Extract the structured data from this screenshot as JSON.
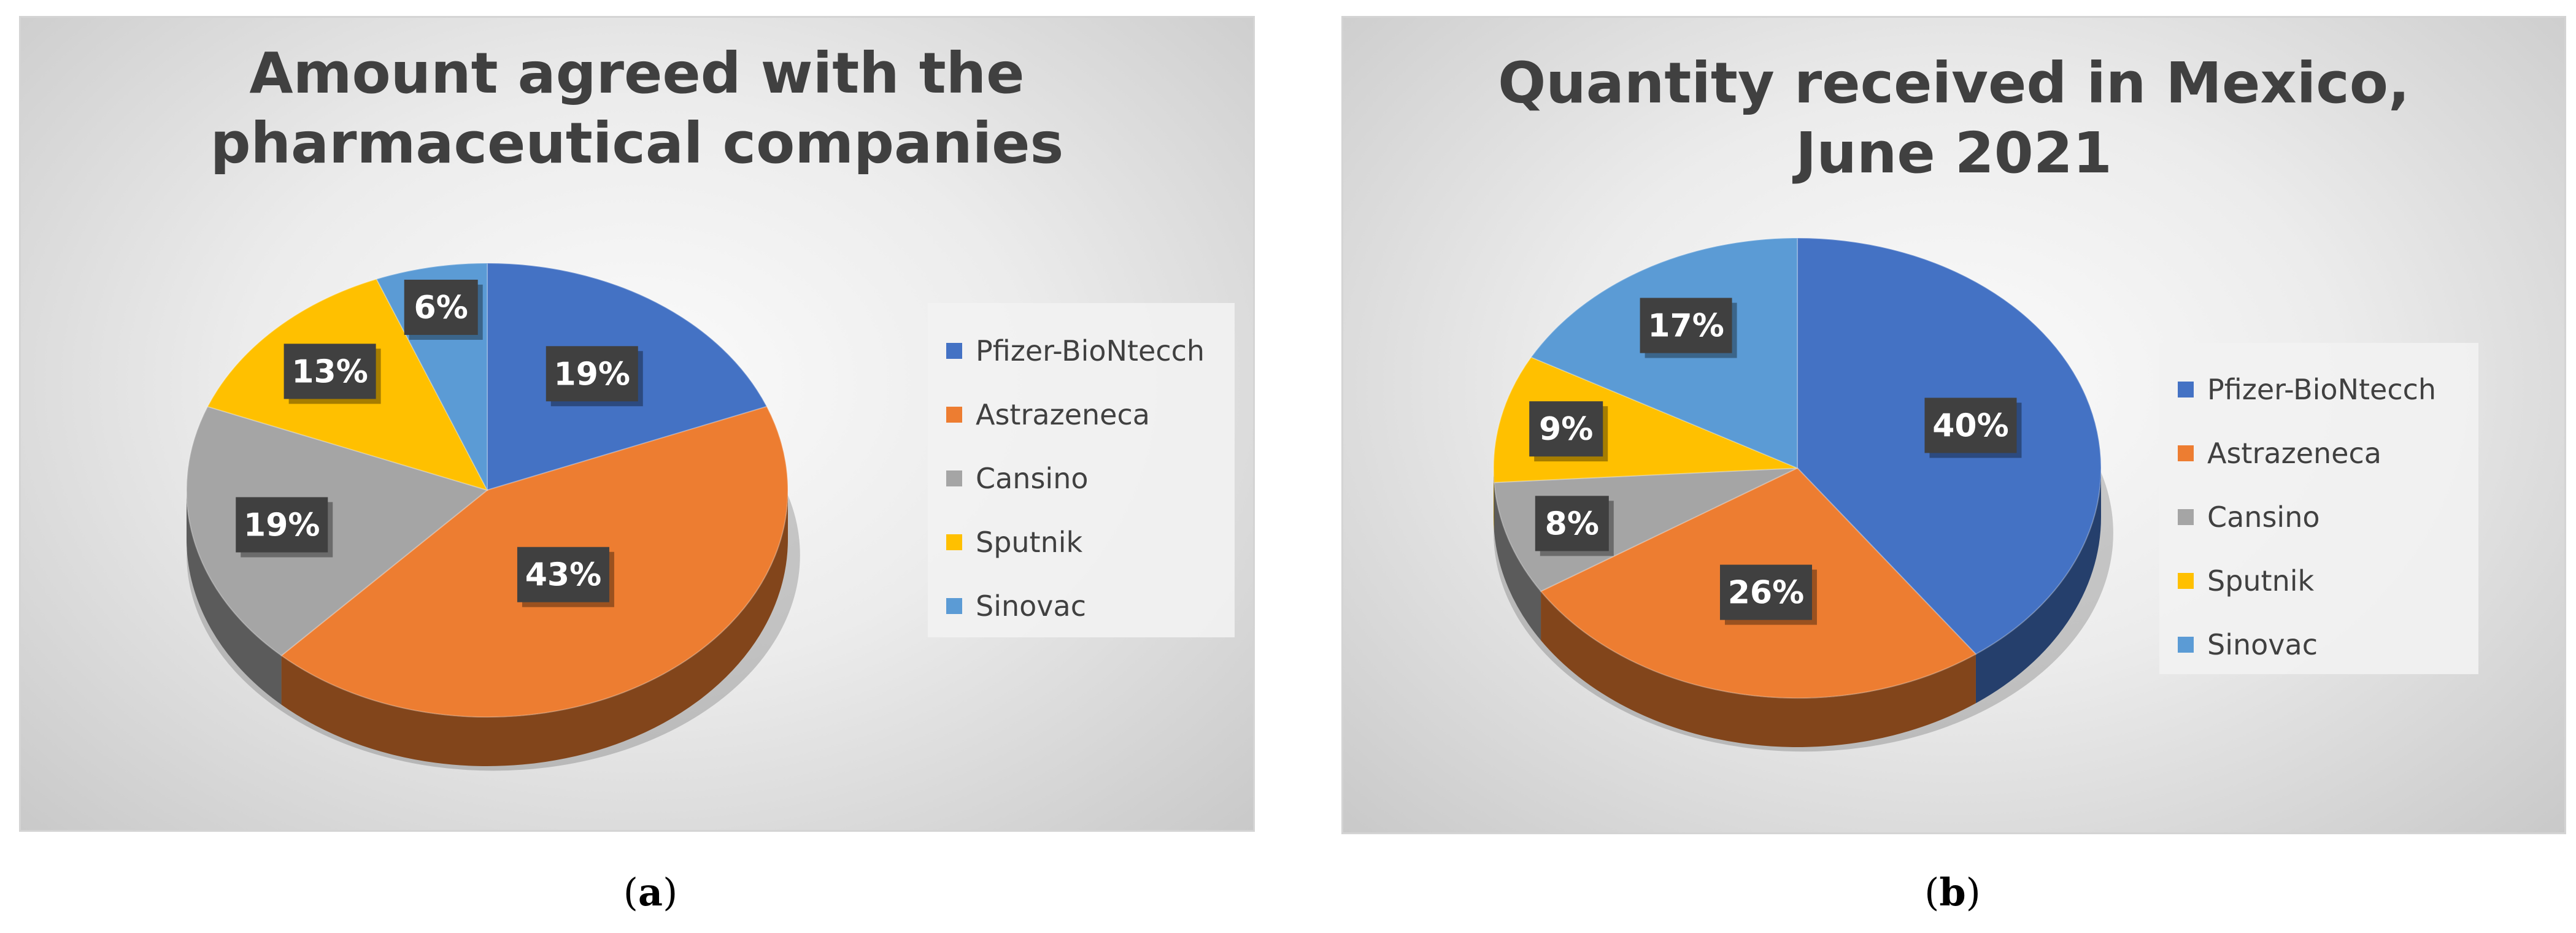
{
  "colors": {
    "pfizer": "#4472C4",
    "astrazeneca": "#ED7D31",
    "cansino": "#A5A5A5",
    "sputnik": "#FFC000",
    "sinovac": "#5B9BD5",
    "label_bg": "#404040",
    "label_text": "#FFFFFF"
  },
  "panels": [
    {
      "caption_letter": "a"
    },
    {
      "caption_letter": "b"
    }
  ],
  "chart_data": [
    {
      "type": "pie",
      "title": "Amount agreed with the pharmaceutical companies",
      "title_lines": [
        "Amount agreed with the",
        "pharmaceutical companies"
      ],
      "legend_position": "right",
      "categories": [
        "Pfizer-BioNtecch",
        "Astrazeneca",
        "Cansino",
        "Sputnik",
        "Sinovac"
      ],
      "values": [
        19,
        43,
        19,
        13,
        6
      ],
      "labels": [
        "19%",
        "43%",
        "19%",
        "13%",
        "6%"
      ],
      "colors": [
        "#4472C4",
        "#ED7D31",
        "#A5A5A5",
        "#FFC000",
        "#5B9BD5"
      ]
    },
    {
      "type": "pie",
      "title": "Quantity received in  Mexico, June 2021",
      "title_lines": [
        "Quantity received in  Mexico,",
        "June 2021"
      ],
      "legend_position": "right",
      "categories": [
        "Pfizer-BioNtecch",
        "Astrazeneca",
        "Cansino",
        "Sputnik",
        "Sinovac"
      ],
      "values": [
        40,
        26,
        8,
        9,
        17
      ],
      "labels": [
        "40%",
        "26%",
        "8%",
        "9%",
        "17%"
      ],
      "colors": [
        "#4472C4",
        "#ED7D31",
        "#A5A5A5",
        "#FFC000",
        "#5B9BD5"
      ]
    }
  ]
}
